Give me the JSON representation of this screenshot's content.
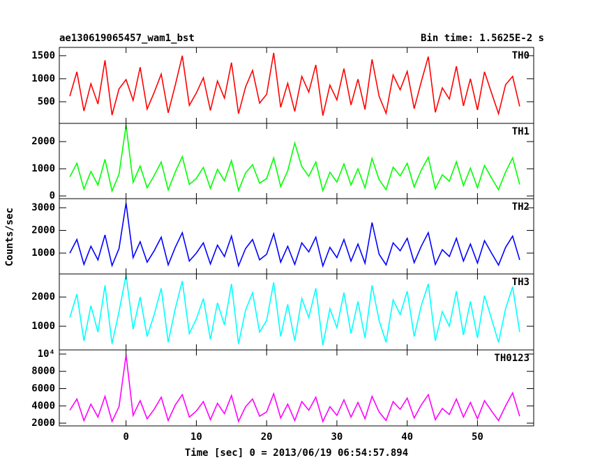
{
  "title": "ae130619065457_wam1_bst",
  "bin_time": "Bin time: 1.5625E-2 s",
  "ylabel": "Counts/sec",
  "xlabel": "Time [sec] 0 = 2013/06/19 06:54:57.894",
  "chart_data": [
    {
      "type": "line",
      "series": [
        {
          "name": "TH0",
          "color": "#ff0000",
          "values": [
            620,
            1150,
            300,
            890,
            450,
            1400,
            210,
            780,
            980,
            530,
            1250,
            340,
            700,
            1100,
            260,
            860,
            1500,
            420,
            690,
            1020,
            310,
            950,
            580,
            1350,
            240,
            820,
            1180,
            470,
            660,
            1560,
            380,
            900,
            290,
            1050,
            710,
            1300,
            200,
            860,
            540,
            1220,
            430,
            990,
            330,
            1420,
            620,
            250,
            1080,
            760,
            1160,
            350,
            930,
            1480,
            270,
            800,
            560,
            1270,
            410,
            1000,
            320,
            1150,
            690,
            240,
            870,
            1050,
            400
          ]
        }
      ],
      "x": [
        -8,
        -7,
        -6,
        -5,
        -4,
        -3,
        -2,
        -1,
        0,
        1,
        2,
        3,
        4,
        5,
        6,
        7,
        8,
        9,
        10,
        11,
        12,
        13,
        14,
        15,
        16,
        17,
        18,
        19,
        20,
        21,
        22,
        23,
        24,
        25,
        26,
        27,
        28,
        29,
        30,
        31,
        32,
        33,
        34,
        35,
        36,
        37,
        38,
        39,
        40,
        41,
        42,
        43,
        44,
        45,
        46,
        47,
        48,
        49,
        50,
        51,
        52,
        53,
        54,
        55,
        56
      ],
      "xlim": [
        -9.5,
        58
      ],
      "xticks": [
        0,
        10,
        20,
        30,
        40,
        50
      ],
      "ylim": [
        30,
        1680
      ],
      "yticks": [
        500,
        1000,
        1500
      ]
    },
    {
      "type": "line",
      "series": [
        {
          "name": "TH1",
          "color": "#00ff00",
          "values": [
            700,
            1200,
            250,
            900,
            400,
            1350,
            180,
            800,
            2600,
            500,
            1100,
            300,
            750,
            1250,
            220,
            880,
            1450,
            420,
            650,
            1050,
            280,
            980,
            560,
            1300,
            200,
            850,
            1150,
            470,
            640,
            1400,
            350,
            920,
            1950,
            1080,
            720,
            1250,
            190,
            870,
            510,
            1180,
            400,
            1000,
            300,
            1380,
            600,
            230,
            1060,
            740,
            1200,
            330,
            950,
            1420,
            260,
            780,
            540,
            1260,
            380,
            1020,
            300,
            1120,
            660,
            230,
            880,
            1400,
            420
          ]
        }
      ],
      "x": [
        -8,
        -7,
        -6,
        -5,
        -4,
        -3,
        -2,
        -1,
        0,
        1,
        2,
        3,
        4,
        5,
        6,
        7,
        8,
        9,
        10,
        11,
        12,
        13,
        14,
        15,
        16,
        17,
        18,
        19,
        20,
        21,
        22,
        23,
        24,
        25,
        26,
        27,
        28,
        29,
        30,
        31,
        32,
        33,
        34,
        35,
        36,
        37,
        38,
        39,
        40,
        41,
        42,
        43,
        44,
        45,
        46,
        47,
        48,
        49,
        50,
        51,
        52,
        53,
        54,
        55,
        56
      ],
      "xlim": [
        -9.5,
        58
      ],
      "xticks": [
        0,
        10,
        20,
        30,
        40,
        50
      ],
      "ylim": [
        -100,
        2670
      ],
      "yticks": [
        0,
        1000,
        2000
      ]
    },
    {
      "type": "line",
      "series": [
        {
          "name": "TH2",
          "color": "#0000ff",
          "values": [
            1000,
            1600,
            500,
            1300,
            700,
            1800,
            450,
            1200,
            3200,
            800,
            1500,
            600,
            1100,
            1700,
            480,
            1250,
            1900,
            650,
            1000,
            1450,
            520,
            1350,
            850,
            1750,
            440,
            1200,
            1600,
            700,
            950,
            1850,
            600,
            1300,
            500,
            1450,
            1050,
            1700,
            430,
            1250,
            800,
            1600,
            650,
            1400,
            550,
            2350,
            950,
            480,
            1450,
            1100,
            1650,
            580,
            1300,
            1900,
            500,
            1150,
            850,
            1650,
            650,
            1400,
            560,
            1550,
            1000,
            470,
            1250,
            1750,
            700
          ]
        }
      ],
      "x": [
        -8,
        -7,
        -6,
        -5,
        -4,
        -3,
        -2,
        -1,
        0,
        1,
        2,
        3,
        4,
        5,
        6,
        7,
        8,
        9,
        10,
        11,
        12,
        13,
        14,
        15,
        16,
        17,
        18,
        19,
        20,
        21,
        22,
        23,
        24,
        25,
        26,
        27,
        28,
        29,
        30,
        31,
        32,
        33,
        34,
        35,
        36,
        37,
        38,
        39,
        40,
        41,
        42,
        43,
        44,
        45,
        46,
        47,
        48,
        49,
        50,
        51,
        52,
        53,
        54,
        55,
        56
      ],
      "xlim": [
        -9.5,
        58
      ],
      "xticks": [
        0,
        10,
        20,
        30,
        40,
        50
      ],
      "ylim": [
        80,
        3400
      ],
      "yticks": [
        1000,
        2000,
        3000
      ]
    },
    {
      "type": "line",
      "series": [
        {
          "name": "TH3",
          "color": "#00ffff",
          "values": [
            1300,
            2100,
            500,
            1700,
            800,
            2400,
            400,
            1500,
            2750,
            900,
            2000,
            650,
            1400,
            2300,
            450,
            1600,
            2550,
            750,
            1250,
            1950,
            550,
            1800,
            1050,
            2450,
            400,
            1550,
            2150,
            800,
            1200,
            2500,
            650,
            1750,
            500,
            1950,
            1300,
            2300,
            350,
            1600,
            950,
            2150,
            750,
            1850,
            600,
            2400,
            1200,
            450,
            1900,
            1400,
            2200,
            650,
            1700,
            2450,
            500,
            1500,
            1000,
            2200,
            700,
            1850,
            600,
            2050,
            1250,
            450,
            1600,
            2350,
            800
          ]
        }
      ],
      "x": [
        -8,
        -7,
        -6,
        -5,
        -4,
        -3,
        -2,
        -1,
        0,
        1,
        2,
        3,
        4,
        5,
        6,
        7,
        8,
        9,
        10,
        11,
        12,
        13,
        14,
        15,
        16,
        17,
        18,
        19,
        20,
        21,
        22,
        23,
        24,
        25,
        26,
        27,
        28,
        29,
        30,
        31,
        32,
        33,
        34,
        35,
        36,
        37,
        38,
        39,
        40,
        41,
        42,
        43,
        44,
        45,
        46,
        47,
        48,
        49,
        50,
        51,
        52,
        53,
        54,
        55,
        56
      ],
      "xlim": [
        -9.5,
        58
      ],
      "xticks": [
        0,
        10,
        20,
        30,
        40,
        50
      ],
      "ylim": [
        190,
        2790
      ],
      "yticks": [
        1000,
        2000
      ]
    },
    {
      "type": "line",
      "series": [
        {
          "name": "TH0123",
          "color": "#ff00ff",
          "values": [
            3500,
            4800,
            2300,
            4200,
            2700,
            5100,
            2200,
            3900,
            9900,
            2900,
            4600,
            2500,
            3600,
            5000,
            2300,
            4100,
            5300,
            2700,
            3400,
            4500,
            2400,
            4300,
            3100,
            5200,
            2200,
            3900,
            4800,
            2800,
            3300,
            5400,
            2600,
            4200,
            2300,
            4500,
            3500,
            5000,
            2200,
            3900,
            2900,
            4700,
            2700,
            4400,
            2500,
            5100,
            3300,
            2300,
            4500,
            3600,
            4900,
            2600,
            4100,
            5300,
            2400,
            3700,
            3000,
            4800,
            2700,
            4400,
            2500,
            4600,
            3400,
            2300,
            4000,
            5500,
            2800
          ]
        }
      ],
      "x": [
        -8,
        -7,
        -6,
        -5,
        -4,
        -3,
        -2,
        -1,
        0,
        1,
        2,
        3,
        4,
        5,
        6,
        7,
        8,
        9,
        10,
        11,
        12,
        13,
        14,
        15,
        16,
        17,
        18,
        19,
        20,
        21,
        22,
        23,
        24,
        25,
        26,
        27,
        28,
        29,
        30,
        31,
        32,
        33,
        34,
        35,
        36,
        37,
        38,
        39,
        40,
        41,
        42,
        43,
        44,
        45,
        46,
        47,
        48,
        49,
        50,
        51,
        52,
        53,
        54,
        55,
        56
      ],
      "xlim": [
        -9.5,
        58
      ],
      "xticks": [
        0,
        10,
        20,
        30,
        40,
        50
      ],
      "ylim": [
        1680,
        10480
      ],
      "yticks": [
        2000,
        4000,
        6000,
        8000,
        {
          "value": 10000,
          "label": "10⁴"
        }
      ]
    }
  ]
}
